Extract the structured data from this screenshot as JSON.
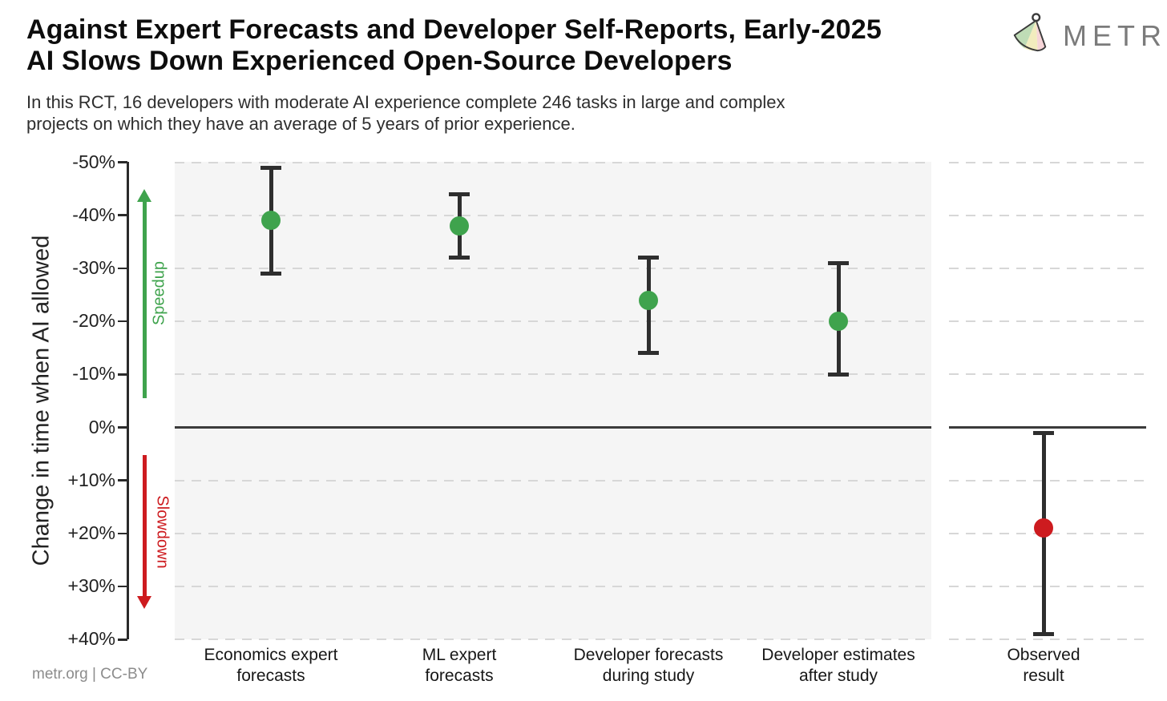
{
  "header": {
    "title_lines": [
      "Against Expert Forecasts and Developer Self-Reports, Early-2025",
      "AI Slows Down Experienced Open-Source Developers"
    ],
    "subtitle_lines": [
      "In this RCT, 16 developers with moderate AI experience complete 246 tasks in large and complex",
      "projects on which they have an average of 5 years of prior experience."
    ],
    "logo_text": "METR"
  },
  "chart_data": {
    "type": "scatter",
    "title": "Against Expert Forecasts and Developer Self-Reports, Early-2025 AI Slows Down Experienced Open-Source Developers",
    "ylabel": "Change in time when AI allowed",
    "xlabel": "",
    "ylim": [
      -50,
      40
    ],
    "y_axis_inverted": true,
    "grid": "horizontal-dashed",
    "legend_position": "none",
    "yticks": [
      {
        "v": -50,
        "label": "-50%"
      },
      {
        "v": -40,
        "label": "-40%"
      },
      {
        "v": -30,
        "label": "-30%"
      },
      {
        "v": -20,
        "label": "-20%"
      },
      {
        "v": -10,
        "label": "-10%"
      },
      {
        "v": 0,
        "label": "0%"
      },
      {
        "v": 10,
        "label": "+10%"
      },
      {
        "v": 20,
        "label": "+20%"
      },
      {
        "v": 30,
        "label": "+30%"
      },
      {
        "v": 40,
        "label": "+40%"
      }
    ],
    "annotations": [
      {
        "text": "Speedup",
        "color": "#3fa34d",
        "direction": "up"
      },
      {
        "text": "Slowdown",
        "color": "#cd1b1f",
        "direction": "down"
      }
    ],
    "categories": [
      "Economics expert forecasts",
      "ML expert forecasts",
      "Developer forecasts during study",
      "Developer estimates after study",
      "Observed result"
    ],
    "points": [
      {
        "category_lines": "Economics expert\nforecasts",
        "value": -39,
        "ci": [
          -49,
          -29
        ],
        "color": "#3fa34d",
        "panel": "left"
      },
      {
        "category_lines": "ML expert\nforecasts",
        "value": -38,
        "ci": [
          -44,
          -32
        ],
        "color": "#3fa34d",
        "panel": "left"
      },
      {
        "category_lines": "Developer forecasts\nduring study",
        "value": -24,
        "ci": [
          -32,
          -14
        ],
        "color": "#3fa34d",
        "panel": "left"
      },
      {
        "category_lines": "Developer estimates\nafter study",
        "value": -20,
        "ci": [
          -31,
          -10
        ],
        "color": "#3fa34d",
        "panel": "left"
      },
      {
        "category_lines": "Observed\nresult",
        "value": 19,
        "ci": [
          1,
          39
        ],
        "color": "#cd1b1f",
        "panel": "right"
      }
    ],
    "colors": {
      "speedup_green": "#3fa34d",
      "slowdown_red": "#cd1b1f",
      "errorbar": "#2e2e2e",
      "panel_fill": "#f5f5f5",
      "gridline": "#d7d7d7",
      "zero_line": "#3b3b3b"
    }
  },
  "footer": {
    "credit": "metr.org  |  CC-BY"
  }
}
